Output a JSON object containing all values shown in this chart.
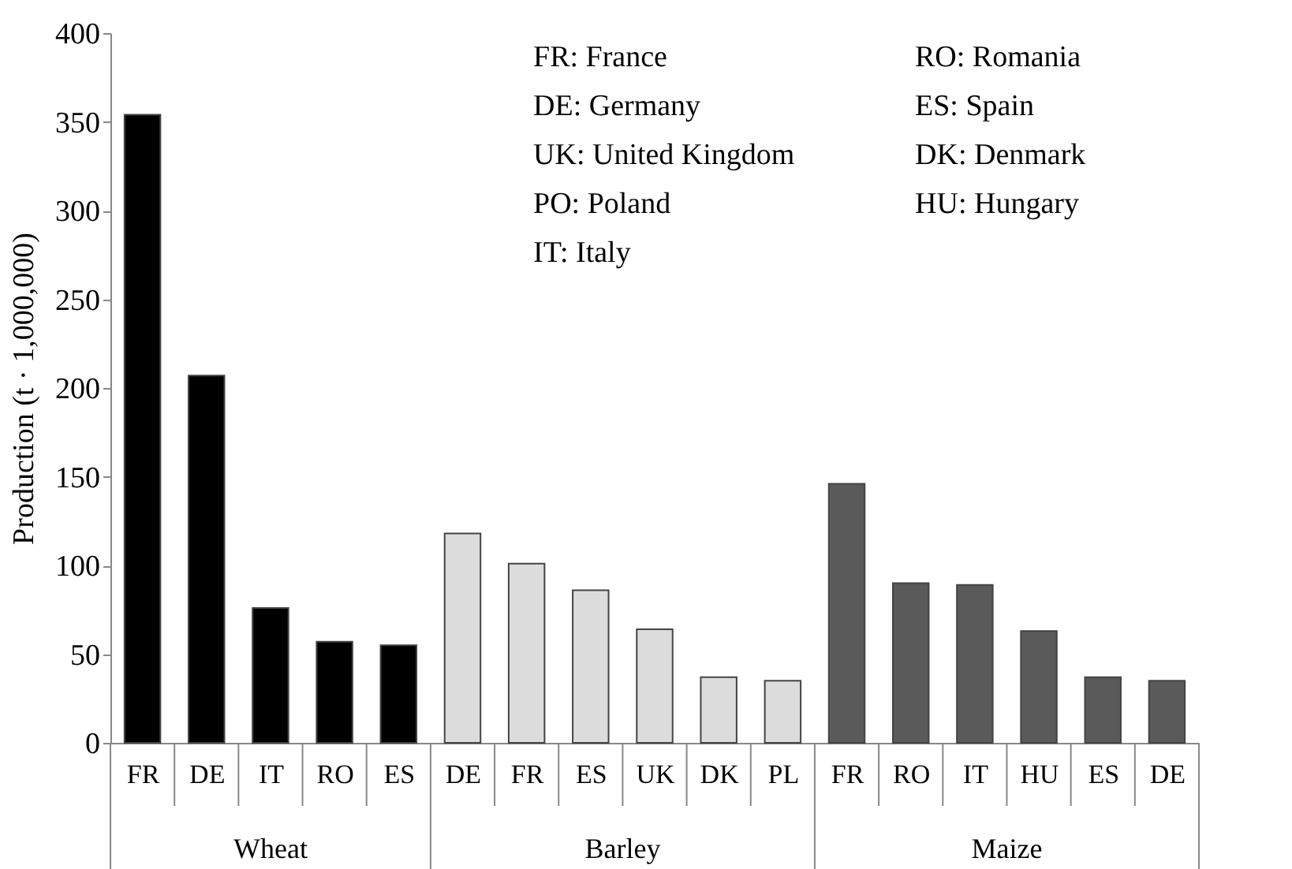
{
  "chart_data": {
    "type": "bar",
    "ylabel": "Production (t · 1,000,000)",
    "categories": [
      "FR",
      "DE",
      "IT",
      "RO",
      "ES",
      "DE",
      "FR",
      "ES",
      "UK",
      "DK",
      "PL",
      "FR",
      "RO",
      "IT",
      "HU",
      "ES",
      "DE"
    ],
    "series": [
      {
        "name": "Wheat",
        "color": "#000000",
        "values": [
          354,
          207,
          76,
          57,
          55,
          null,
          null,
          null,
          null,
          null,
          null,
          null,
          null,
          null,
          null,
          null,
          null
        ]
      },
      {
        "name": "Barley",
        "color": "#dcdcdc",
        "values": [
          null,
          null,
          null,
          null,
          null,
          118,
          101,
          86,
          64,
          37,
          35,
          null,
          null,
          null,
          null,
          null,
          null
        ]
      },
      {
        "name": "Maize",
        "color": "#5a5a5a",
        "values": [
          null,
          null,
          null,
          null,
          null,
          null,
          null,
          null,
          null,
          null,
          null,
          146,
          90,
          89,
          63,
          37,
          35
        ]
      }
    ],
    "ylim": [
      0,
      400
    ],
    "yticks": [
      0,
      50,
      100,
      150,
      200,
      250,
      300,
      350,
      400
    ],
    "grid": false,
    "annotations": [
      "FR: France",
      "DE: Germany",
      "UK: United Kingdom",
      "PO: Poland",
      "IT: Italy",
      "RO: Romania",
      "ES: Spain",
      "DK: Denmark",
      "HU: Hungary"
    ]
  }
}
